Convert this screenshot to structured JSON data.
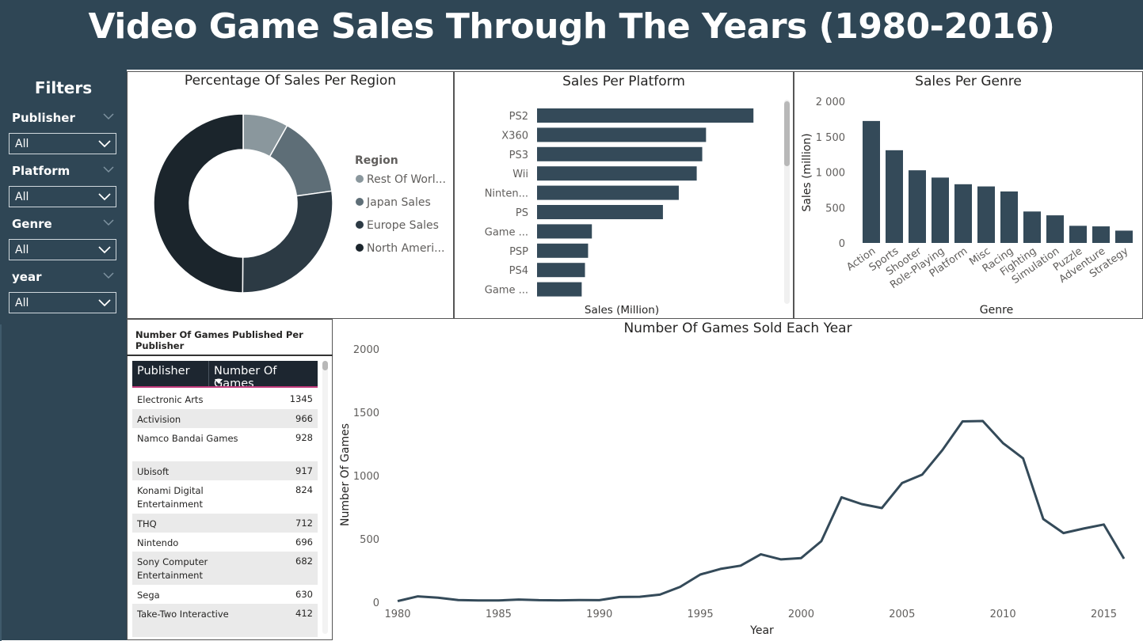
{
  "header": {
    "title": "Video Game Sales Through The Years (1980-2016)"
  },
  "filters": {
    "title": "Filters",
    "items": [
      {
        "label": "Publisher",
        "value": "All"
      },
      {
        "label": "Platform",
        "value": "All"
      },
      {
        "label": "Genre",
        "value": "All"
      },
      {
        "label": "year",
        "value": "All"
      }
    ]
  },
  "colors": {
    "header_bg": "#2f4655",
    "bar": "#344a59",
    "line": "#344a59"
  },
  "chart_data": [
    {
      "type": "pie",
      "title": "Percentage Of Sales Per Region",
      "legend_title": "Region",
      "legend_position": "right",
      "slices": [
        {
          "label": "Rest Of Worl...",
          "value": 8.2,
          "color": "#8a979d"
        },
        {
          "label": "Japan Sales",
          "value": 14.6,
          "color": "#5e6e77"
        },
        {
          "label": "Europe Sales",
          "value": 27.3,
          "color": "#2c3a44"
        },
        {
          "label": "North Ameri...",
          "value": 49.9,
          "color": "#1b252c"
        }
      ]
    },
    {
      "type": "bar",
      "orientation": "horizontal",
      "title": "Sales Per Platform",
      "xlabel": "Sales (Million)",
      "categories": [
        "PS2",
        "X360",
        "PS3",
        "Wii",
        "Ninten...",
        "PS",
        "Game ...",
        "PSP",
        "PS4",
        "Game ..."
      ],
      "values": [
        1255,
        980,
        958,
        926,
        822,
        730,
        318,
        296,
        278,
        259
      ],
      "xlim": [
        0,
        1300
      ]
    },
    {
      "type": "bar",
      "title": "Sales Per Genre",
      "xlabel": "Genre",
      "ylabel": "Sales (million)",
      "categories": [
        "Action",
        "Sports",
        "Shooter",
        "Role-Playing",
        "Platform",
        "Misc",
        "Racing",
        "Fighting",
        "Simulation",
        "Puzzle",
        "Adventure",
        "Strategy"
      ],
      "values": [
        1722,
        1309,
        1026,
        923,
        829,
        798,
        727,
        444,
        390,
        242,
        234,
        174
      ],
      "ylim": [
        0,
        2000
      ],
      "yticks": [
        "0",
        "500",
        "1 000",
        "1 500",
        "2 000"
      ]
    },
    {
      "type": "line",
      "title": "Number Of Games Sold Each Year",
      "xlabel": "Year",
      "ylabel": "Number Of Games",
      "x": [
        1980,
        1981,
        1982,
        1983,
        1984,
        1985,
        1986,
        1987,
        1988,
        1989,
        1990,
        1991,
        1992,
        1993,
        1994,
        1995,
        1996,
        1997,
        1998,
        1999,
        2000,
        2001,
        2002,
        2003,
        2004,
        2005,
        2006,
        2007,
        2008,
        2009,
        2010,
        2011,
        2012,
        2013,
        2014,
        2015,
        2016
      ],
      "y": [
        9,
        46,
        36,
        17,
        14,
        14,
        21,
        16,
        15,
        17,
        16,
        41,
        43,
        60,
        121,
        219,
        263,
        289,
        379,
        338,
        349,
        482,
        829,
        775,
        744,
        941,
        1008,
        1202,
        1428,
        1431,
        1257,
        1136,
        657,
        546,
        582,
        614,
        344
      ],
      "xticks": [
        "1980",
        "1985",
        "1990",
        "1995",
        "2000",
        "2005",
        "2010",
        "2015"
      ],
      "yticks": [
        "0",
        "500",
        "1000",
        "1500",
        "2000"
      ],
      "xlim": [
        1980,
        2016
      ],
      "ylim": [
        0,
        2000
      ]
    },
    {
      "type": "table",
      "title": "Number Of Games Published Per Publisher",
      "columns": [
        "Publisher",
        "Number Of Games"
      ],
      "rows": [
        [
          "Electronic Arts",
          "1345"
        ],
        [
          "Activision",
          "966"
        ],
        [
          "Namco Bandai Games",
          "928"
        ],
        [
          "Ubisoft",
          "917"
        ],
        [
          "Konami Digital Entertainment",
          "824"
        ],
        [
          "THQ",
          "712"
        ],
        [
          "Nintendo",
          "696"
        ],
        [
          "Sony Computer Entertainment",
          "682"
        ],
        [
          "Sega",
          "630"
        ],
        [
          "Take-Two Interactive",
          "412"
        ]
      ]
    }
  ]
}
